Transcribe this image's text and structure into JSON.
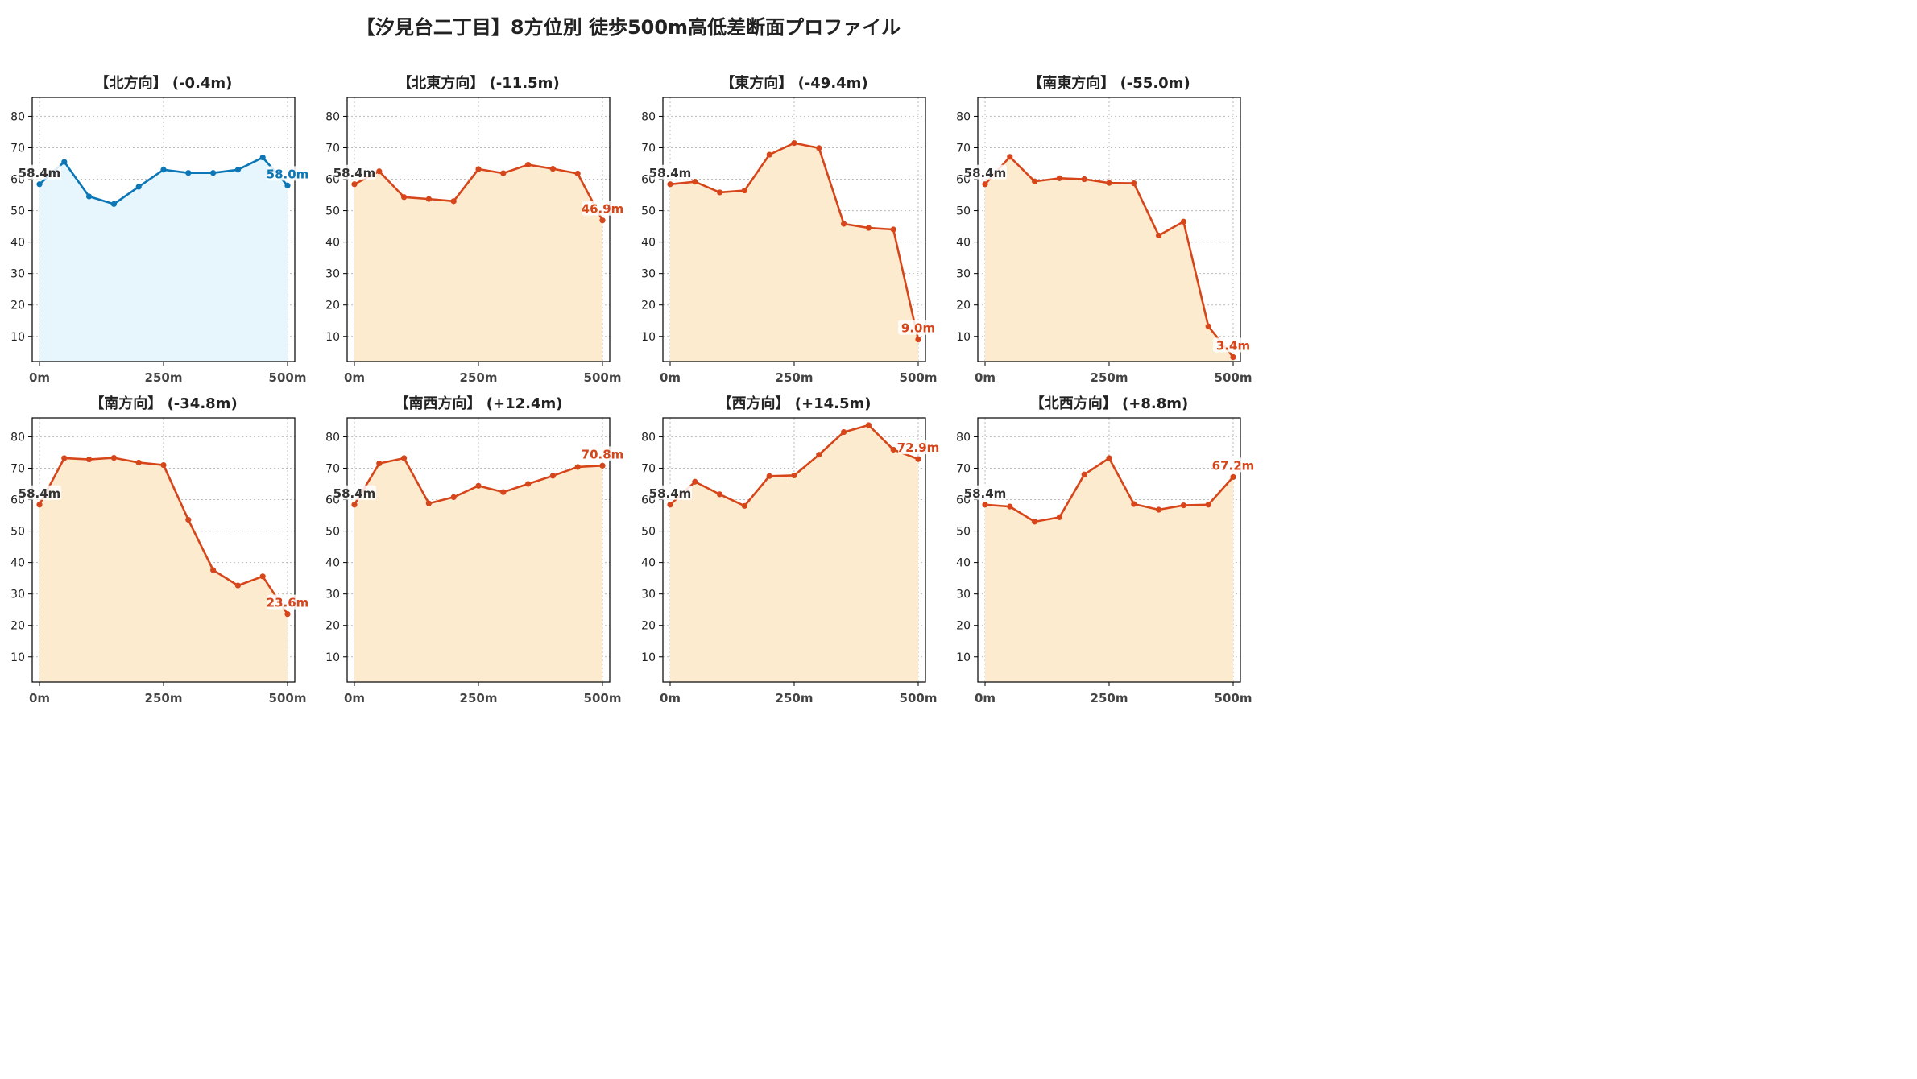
{
  "suptitle": "【汐見台二丁目】8方位別 徒歩500m高低差断面プロファイル",
  "colors": {
    "up_line": "#0b77b7",
    "up_fill": "#e6f6fc",
    "down_line": "#d6461a",
    "down_fill": "#fdebd0",
    "start_label": "#333333",
    "grid": "#bbbbbb"
  },
  "chart_data": [
    {
      "type": "area",
      "title": "【北方向】 (-0.4m)",
      "x": [
        0,
        50,
        100,
        150,
        200,
        250,
        300,
        350,
        400,
        450,
        500
      ],
      "y": [
        58.4,
        65.5,
        54.5,
        52.1,
        57.6,
        63.0,
        62.0,
        62.0,
        63.0,
        66.9,
        58.0
      ],
      "start_label": "58.4m",
      "end_label": "58.0m",
      "xticks": [
        "0m",
        "250m",
        "500m"
      ],
      "ylim": [
        2,
        86
      ],
      "yticks": [
        10,
        20,
        30,
        40,
        50,
        60,
        70,
        80
      ],
      "grid": true,
      "style": "up"
    },
    {
      "type": "area",
      "title": "【北東方向】 (-11.5m)",
      "x": [
        0,
        50,
        100,
        150,
        200,
        250,
        300,
        350,
        400,
        450,
        500
      ],
      "y": [
        58.4,
        62.5,
        54.3,
        53.7,
        53.0,
        63.2,
        61.9,
        64.6,
        63.3,
        61.8,
        46.9
      ],
      "start_label": "58.4m",
      "end_label": "46.9m",
      "xticks": [
        "0m",
        "250m",
        "500m"
      ],
      "ylim": [
        2,
        86
      ],
      "yticks": [
        10,
        20,
        30,
        40,
        50,
        60,
        70,
        80
      ],
      "grid": true,
      "style": "down"
    },
    {
      "type": "area",
      "title": "【東方向】 (-49.4m)",
      "x": [
        0,
        50,
        100,
        150,
        200,
        250,
        300,
        350,
        400,
        450,
        500
      ],
      "y": [
        58.4,
        59.2,
        55.8,
        56.4,
        67.8,
        71.5,
        69.9,
        45.8,
        44.5,
        44.0,
        9.0
      ],
      "start_label": "58.4m",
      "end_label": "9.0m",
      "xticks": [
        "0m",
        "250m",
        "500m"
      ],
      "ylim": [
        2,
        86
      ],
      "yticks": [
        10,
        20,
        30,
        40,
        50,
        60,
        70,
        80
      ],
      "grid": true,
      "style": "down"
    },
    {
      "type": "area",
      "title": "【南東方向】 (-55.0m)",
      "x": [
        0,
        50,
        100,
        150,
        200,
        250,
        300,
        350,
        400,
        450,
        500
      ],
      "y": [
        58.4,
        67.1,
        59.3,
        60.3,
        60.0,
        58.8,
        58.7,
        42.1,
        46.5,
        13.2,
        3.4
      ],
      "start_label": "58.4m",
      "end_label": "3.4m",
      "xticks": [
        "0m",
        "250m",
        "500m"
      ],
      "ylim": [
        2,
        86
      ],
      "yticks": [
        10,
        20,
        30,
        40,
        50,
        60,
        70,
        80
      ],
      "grid": true,
      "style": "down"
    },
    {
      "type": "area",
      "title": "【南方向】 (-34.8m)",
      "x": [
        0,
        50,
        100,
        150,
        200,
        250,
        300,
        350,
        400,
        450,
        500
      ],
      "y": [
        58.4,
        73.2,
        72.8,
        73.3,
        71.8,
        71.0,
        53.6,
        37.6,
        32.7,
        35.6,
        23.6
      ],
      "start_label": "58.4m",
      "end_label": "23.6m",
      "xticks": [
        "0m",
        "250m",
        "500m"
      ],
      "ylim": [
        2,
        86
      ],
      "yticks": [
        10,
        20,
        30,
        40,
        50,
        60,
        70,
        80
      ],
      "grid": true,
      "style": "down"
    },
    {
      "type": "area",
      "title": "【南西方向】 (+12.4m)",
      "x": [
        0,
        50,
        100,
        150,
        200,
        250,
        300,
        350,
        400,
        450,
        500
      ],
      "y": [
        58.4,
        71.5,
        73.2,
        58.8,
        60.8,
        64.4,
        62.4,
        65.0,
        67.6,
        70.4,
        70.8
      ],
      "start_label": "58.4m",
      "end_label": "70.8m",
      "xticks": [
        "0m",
        "250m",
        "500m"
      ],
      "ylim": [
        2,
        86
      ],
      "yticks": [
        10,
        20,
        30,
        40,
        50,
        60,
        70,
        80
      ],
      "grid": true,
      "style": "down"
    },
    {
      "type": "area",
      "title": "【西方向】 (+14.5m)",
      "x": [
        0,
        50,
        100,
        150,
        200,
        250,
        300,
        350,
        400,
        450,
        500
      ],
      "y": [
        58.4,
        65.7,
        61.7,
        58.0,
        67.5,
        67.7,
        74.3,
        81.5,
        83.7,
        75.9,
        72.9
      ],
      "start_label": "58.4m",
      "end_label": "72.9m",
      "xticks": [
        "0m",
        "250m",
        "500m"
      ],
      "ylim": [
        2,
        86
      ],
      "yticks": [
        10,
        20,
        30,
        40,
        50,
        60,
        70,
        80
      ],
      "grid": true,
      "style": "down"
    },
    {
      "type": "area",
      "title": "【北西方向】 (+8.8m)",
      "x": [
        0,
        50,
        100,
        150,
        200,
        250,
        300,
        350,
        400,
        450,
        500
      ],
      "y": [
        58.4,
        57.8,
        53.0,
        54.4,
        68.0,
        73.2,
        58.6,
        56.8,
        58.2,
        58.4,
        67.2
      ],
      "start_label": "58.4m",
      "end_label": "67.2m",
      "xticks": [
        "0m",
        "250m",
        "500m"
      ],
      "ylim": [
        2,
        86
      ],
      "yticks": [
        10,
        20,
        30,
        40,
        50,
        60,
        70,
        80
      ],
      "grid": true,
      "style": "down"
    }
  ]
}
